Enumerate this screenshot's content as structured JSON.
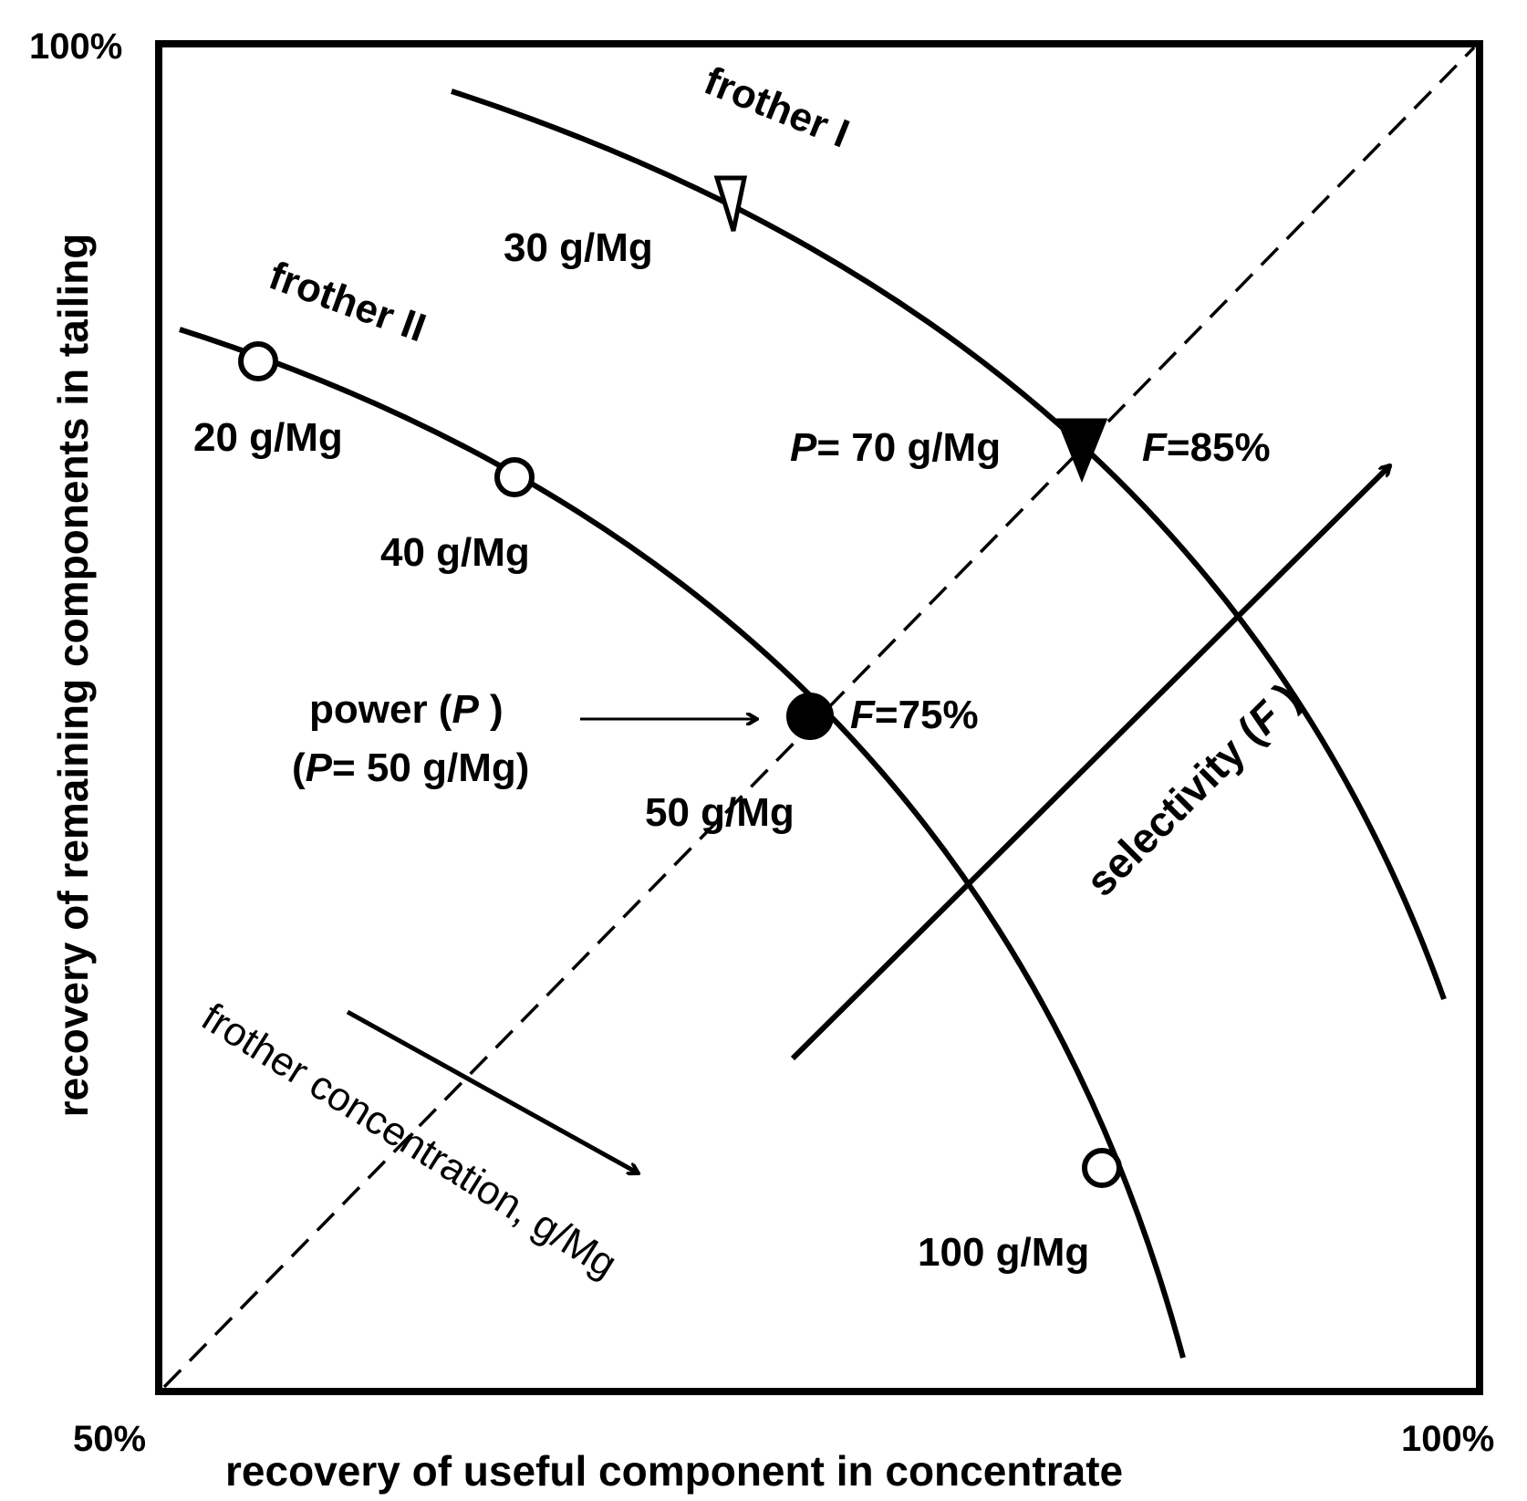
{
  "axes": {
    "x_label": "recovery of useful component in concentrate",
    "y_label": "recovery of remaining components in tailing",
    "x_min_label": "50%",
    "x_max_label": "100%",
    "y_max_label": "100%"
  },
  "curves": {
    "frother_1": {
      "name": "frother I",
      "dose_30": "30 g/Mg",
      "power_prefix": "P",
      "power_value": "= 70 g/Mg",
      "selectivity_prefix": "F",
      "selectivity_value": "=85%"
    },
    "frother_2": {
      "name": "frother II",
      "dose_20": "20 g/Mg",
      "dose_40": "40 g/Mg",
      "dose_50": "50 g/Mg",
      "dose_100": "100 g/Mg",
      "selectivity_prefix": "F",
      "selectivity_value": "=75%"
    }
  },
  "annotations": {
    "power_word": "power (",
    "power_symbol": "P",
    "power_close": " )",
    "power_eq_open": "(",
    "power_eq_symbol": "P",
    "power_eq_value": "= 50 g/Mg)",
    "selectivity_word": "selectivity",
    "selectivity_open": " (",
    "selectivity_symbol": "F",
    "selectivity_close": " )",
    "frother_concentration": "frother concentration, g/Mg"
  },
  "colors": {
    "ink": "#000000",
    "background": "#ffffff"
  }
}
